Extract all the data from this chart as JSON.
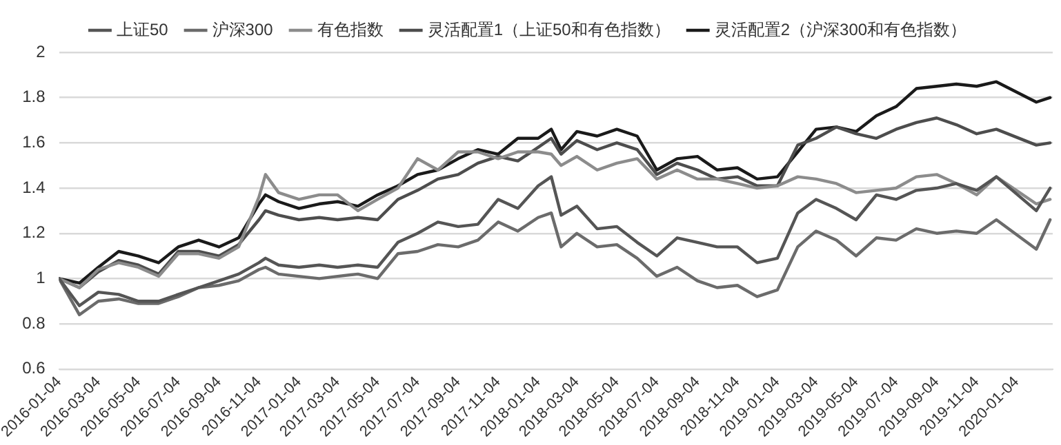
{
  "chart_data": {
    "type": "line",
    "legend": "top",
    "grid": "y",
    "marker": "none",
    "line_style": "solid",
    "x": [
      "2016-01-04",
      "2016-02-04",
      "2016-03-04",
      "2016-04-04",
      "2016-05-04",
      "2016-06-04",
      "2016-07-04",
      "2016-08-04",
      "2016-09-04",
      "2016-10-04",
      "2016-11-04",
      "2016-11-14",
      "2016-12-04",
      "2017-01-04",
      "2017-02-04",
      "2017-03-04",
      "2017-04-04",
      "2017-05-04",
      "2017-06-04",
      "2017-07-04",
      "2017-08-04",
      "2017-09-04",
      "2017-10-04",
      "2017-11-04",
      "2017-12-04",
      "2018-01-04",
      "2018-01-24",
      "2018-02-08",
      "2018-03-04",
      "2018-04-04",
      "2018-05-04",
      "2018-06-04",
      "2018-07-04",
      "2018-08-04",
      "2018-09-04",
      "2018-10-04",
      "2018-11-04",
      "2018-12-04",
      "2019-01-04",
      "2019-02-04",
      "2019-03-04",
      "2019-04-04",
      "2019-05-04",
      "2019-06-04",
      "2019-07-04",
      "2019-08-04",
      "2019-09-04",
      "2019-10-04",
      "2019-11-04",
      "2019-12-04",
      "2020-02-03",
      "2020-02-24"
    ],
    "xlim": [
      "2016-01-04",
      "2020-02-28"
    ],
    "xticks": [
      "2016-01-04",
      "2016-03-04",
      "2016-05-04",
      "2016-07-04",
      "2016-09-04",
      "2016-11-04",
      "2017-01-04",
      "2017-03-04",
      "2017-05-04",
      "2017-07-04",
      "2017-09-04",
      "2017-11-04",
      "2018-01-04",
      "2018-03-04",
      "2018-05-04",
      "2018-07-04",
      "2018-09-04",
      "2018-11-04",
      "2019-01-04",
      "2019-03-04",
      "2019-05-04",
      "2019-07-04",
      "2019-09-04",
      "2019-11-04",
      "2020-01-04"
    ],
    "ylim": [
      0.6,
      2
    ],
    "yticks": [
      0.6,
      0.8,
      1,
      1.2,
      1.4,
      1.6,
      1.8,
      2
    ],
    "series": [
      {
        "name": "上证50",
        "color": "#555555",
        "values": [
          1.0,
          0.88,
          0.94,
          0.93,
          0.9,
          0.9,
          0.93,
          0.96,
          0.99,
          1.02,
          1.07,
          1.09,
          1.06,
          1.05,
          1.06,
          1.05,
          1.06,
          1.05,
          1.16,
          1.2,
          1.25,
          1.23,
          1.24,
          1.35,
          1.31,
          1.41,
          1.45,
          1.28,
          1.32,
          1.22,
          1.23,
          1.16,
          1.1,
          1.18,
          1.16,
          1.14,
          1.14,
          1.07,
          1.09,
          1.29,
          1.35,
          1.31,
          1.26,
          1.37,
          1.35,
          1.39,
          1.4,
          1.42,
          1.39,
          1.45,
          1.3,
          1.4
        ]
      },
      {
        "name": "沪深300",
        "color": "#6b6b6b",
        "values": [
          1.0,
          0.84,
          0.9,
          0.91,
          0.89,
          0.89,
          0.92,
          0.96,
          0.97,
          0.99,
          1.04,
          1.05,
          1.02,
          1.01,
          1.0,
          1.01,
          1.02,
          1.0,
          1.11,
          1.12,
          1.15,
          1.14,
          1.17,
          1.25,
          1.21,
          1.27,
          1.29,
          1.14,
          1.2,
          1.14,
          1.15,
          1.09,
          1.01,
          1.05,
          0.99,
          0.96,
          0.97,
          0.92,
          0.95,
          1.14,
          1.21,
          1.17,
          1.1,
          1.18,
          1.17,
          1.22,
          1.2,
          1.21,
          1.2,
          1.26,
          1.13,
          1.26
        ]
      },
      {
        "name": "有色指数",
        "color": "#8c8c8c",
        "values": [
          1.0,
          0.96,
          1.04,
          1.07,
          1.05,
          1.01,
          1.11,
          1.11,
          1.09,
          1.14,
          1.36,
          1.46,
          1.38,
          1.35,
          1.37,
          1.37,
          1.3,
          1.35,
          1.4,
          1.53,
          1.48,
          1.56,
          1.56,
          1.53,
          1.56,
          1.56,
          1.55,
          1.5,
          1.54,
          1.48,
          1.51,
          1.53,
          1.44,
          1.48,
          1.44,
          1.44,
          1.42,
          1.4,
          1.41,
          1.45,
          1.44,
          1.42,
          1.38,
          1.39,
          1.4,
          1.45,
          1.46,
          1.42,
          1.37,
          1.45,
          1.33,
          1.35
        ]
      },
      {
        "name": "灵活配置1（上证50和有色指数）",
        "color": "#4d4d4d",
        "values": [
          1.0,
          0.96,
          1.03,
          1.08,
          1.06,
          1.02,
          1.12,
          1.12,
          1.1,
          1.15,
          1.26,
          1.3,
          1.28,
          1.26,
          1.27,
          1.26,
          1.27,
          1.26,
          1.35,
          1.39,
          1.44,
          1.46,
          1.51,
          1.54,
          1.52,
          1.58,
          1.62,
          1.55,
          1.61,
          1.57,
          1.6,
          1.57,
          1.46,
          1.51,
          1.48,
          1.44,
          1.45,
          1.41,
          1.41,
          1.59,
          1.62,
          1.67,
          1.64,
          1.62,
          1.66,
          1.69,
          1.71,
          1.68,
          1.64,
          1.66,
          1.59,
          1.6
        ]
      },
      {
        "name": "灵活配置2（沪深300和有色指数）",
        "color": "#1a1a1a",
        "values": [
          1.0,
          0.98,
          1.05,
          1.12,
          1.1,
          1.07,
          1.14,
          1.17,
          1.14,
          1.18,
          1.33,
          1.37,
          1.34,
          1.31,
          1.33,
          1.34,
          1.32,
          1.37,
          1.41,
          1.46,
          1.48,
          1.53,
          1.57,
          1.55,
          1.62,
          1.62,
          1.66,
          1.57,
          1.65,
          1.63,
          1.66,
          1.63,
          1.48,
          1.53,
          1.54,
          1.48,
          1.49,
          1.44,
          1.45,
          1.56,
          1.66,
          1.67,
          1.65,
          1.72,
          1.76,
          1.84,
          1.85,
          1.86,
          1.85,
          1.87,
          1.78,
          1.8
        ]
      }
    ]
  }
}
